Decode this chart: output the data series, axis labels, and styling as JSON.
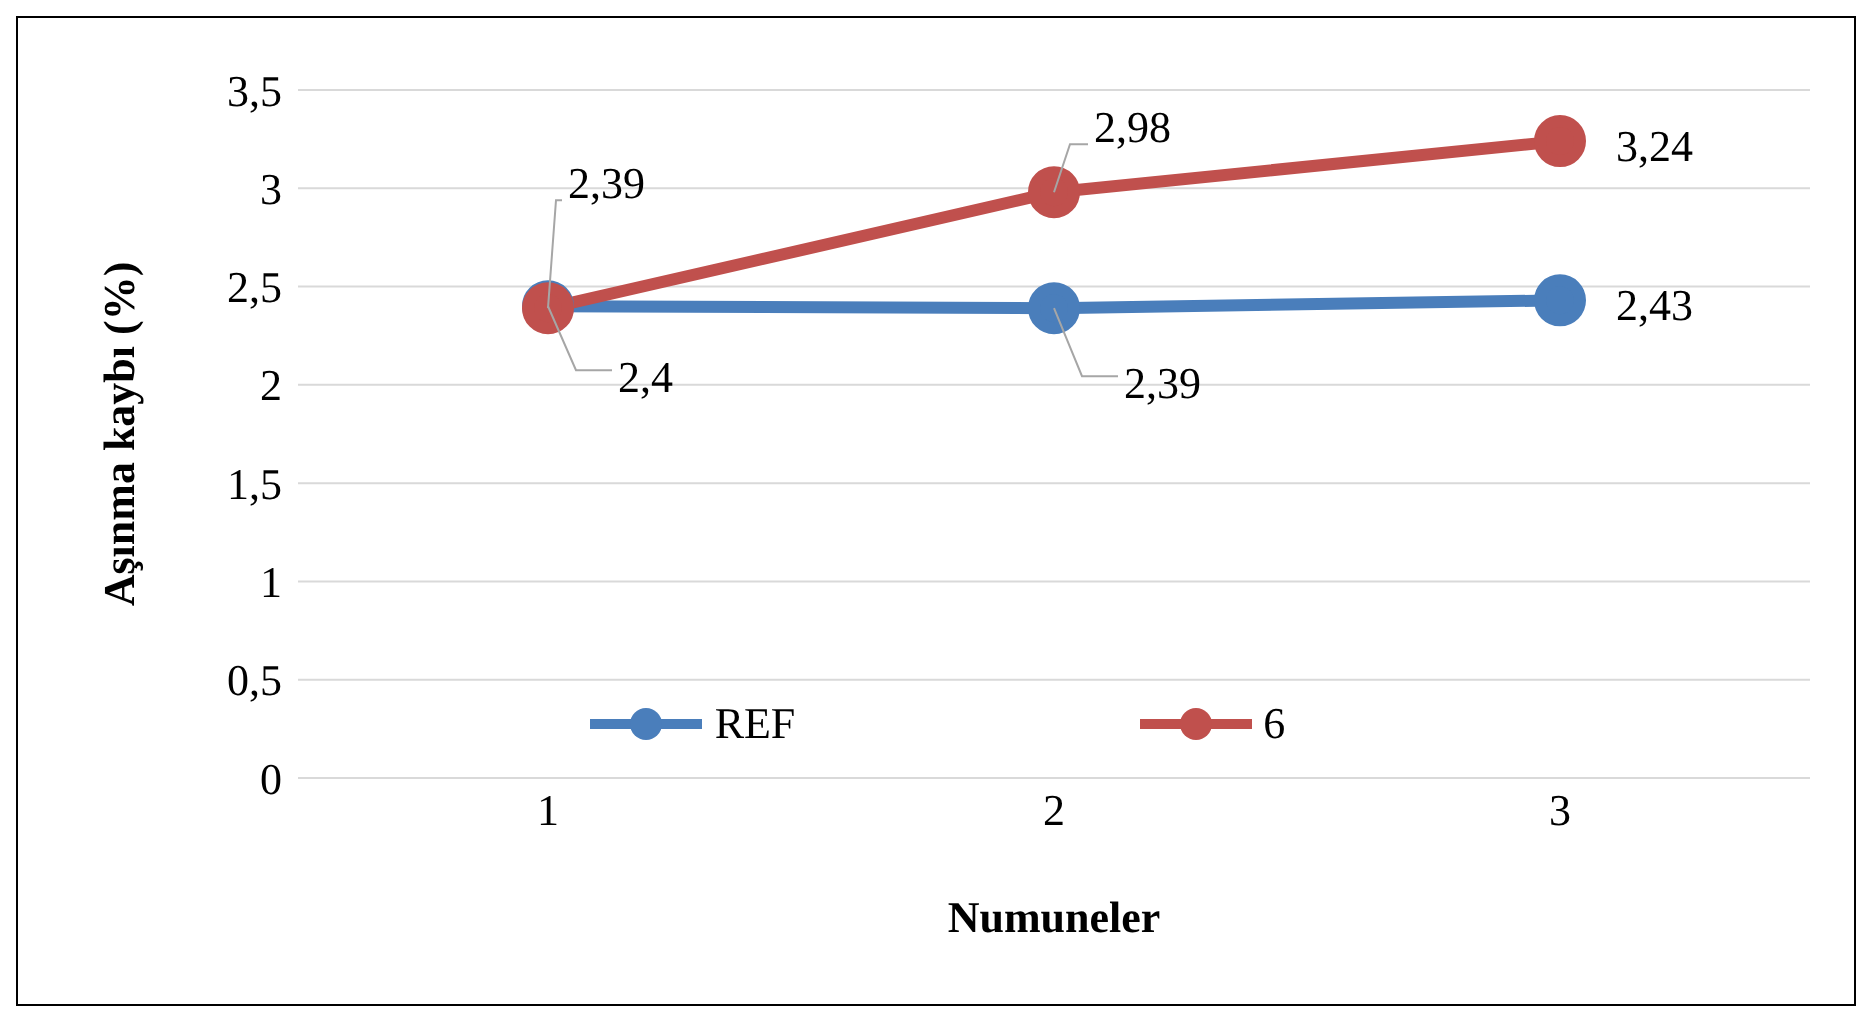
{
  "chart_data": {
    "type": "line",
    "xlabel": "Numuneler",
    "ylabel": "Aşınma kaybı   (%)",
    "categories": [
      "1",
      "2",
      "3"
    ],
    "series": [
      {
        "name": "REF",
        "color": "#4a7ebb",
        "values": [
          2.4,
          2.39,
          2.43
        ],
        "value_labels": [
          "2,4",
          "2,39",
          "2,43"
        ]
      },
      {
        "name": "6",
        "color": "#c0504d",
        "values": [
          2.39,
          2.98,
          3.24
        ],
        "value_labels": [
          "2,39",
          "2,98",
          "3,24"
        ]
      }
    ],
    "ylim": [
      0,
      3.5
    ],
    "yticks": [
      0,
      {
        "value": 0.5,
        "label": "0,5"
      },
      1,
      {
        "value": 1.5,
        "label": "1,5"
      },
      2,
      {
        "value": 2.5,
        "label": "2,5"
      },
      3,
      {
        "value": 3.5,
        "label": "3,5"
      }
    ],
    "grid": "y",
    "legend": "bottom",
    "marker": "circle",
    "line_style": "solid"
  }
}
